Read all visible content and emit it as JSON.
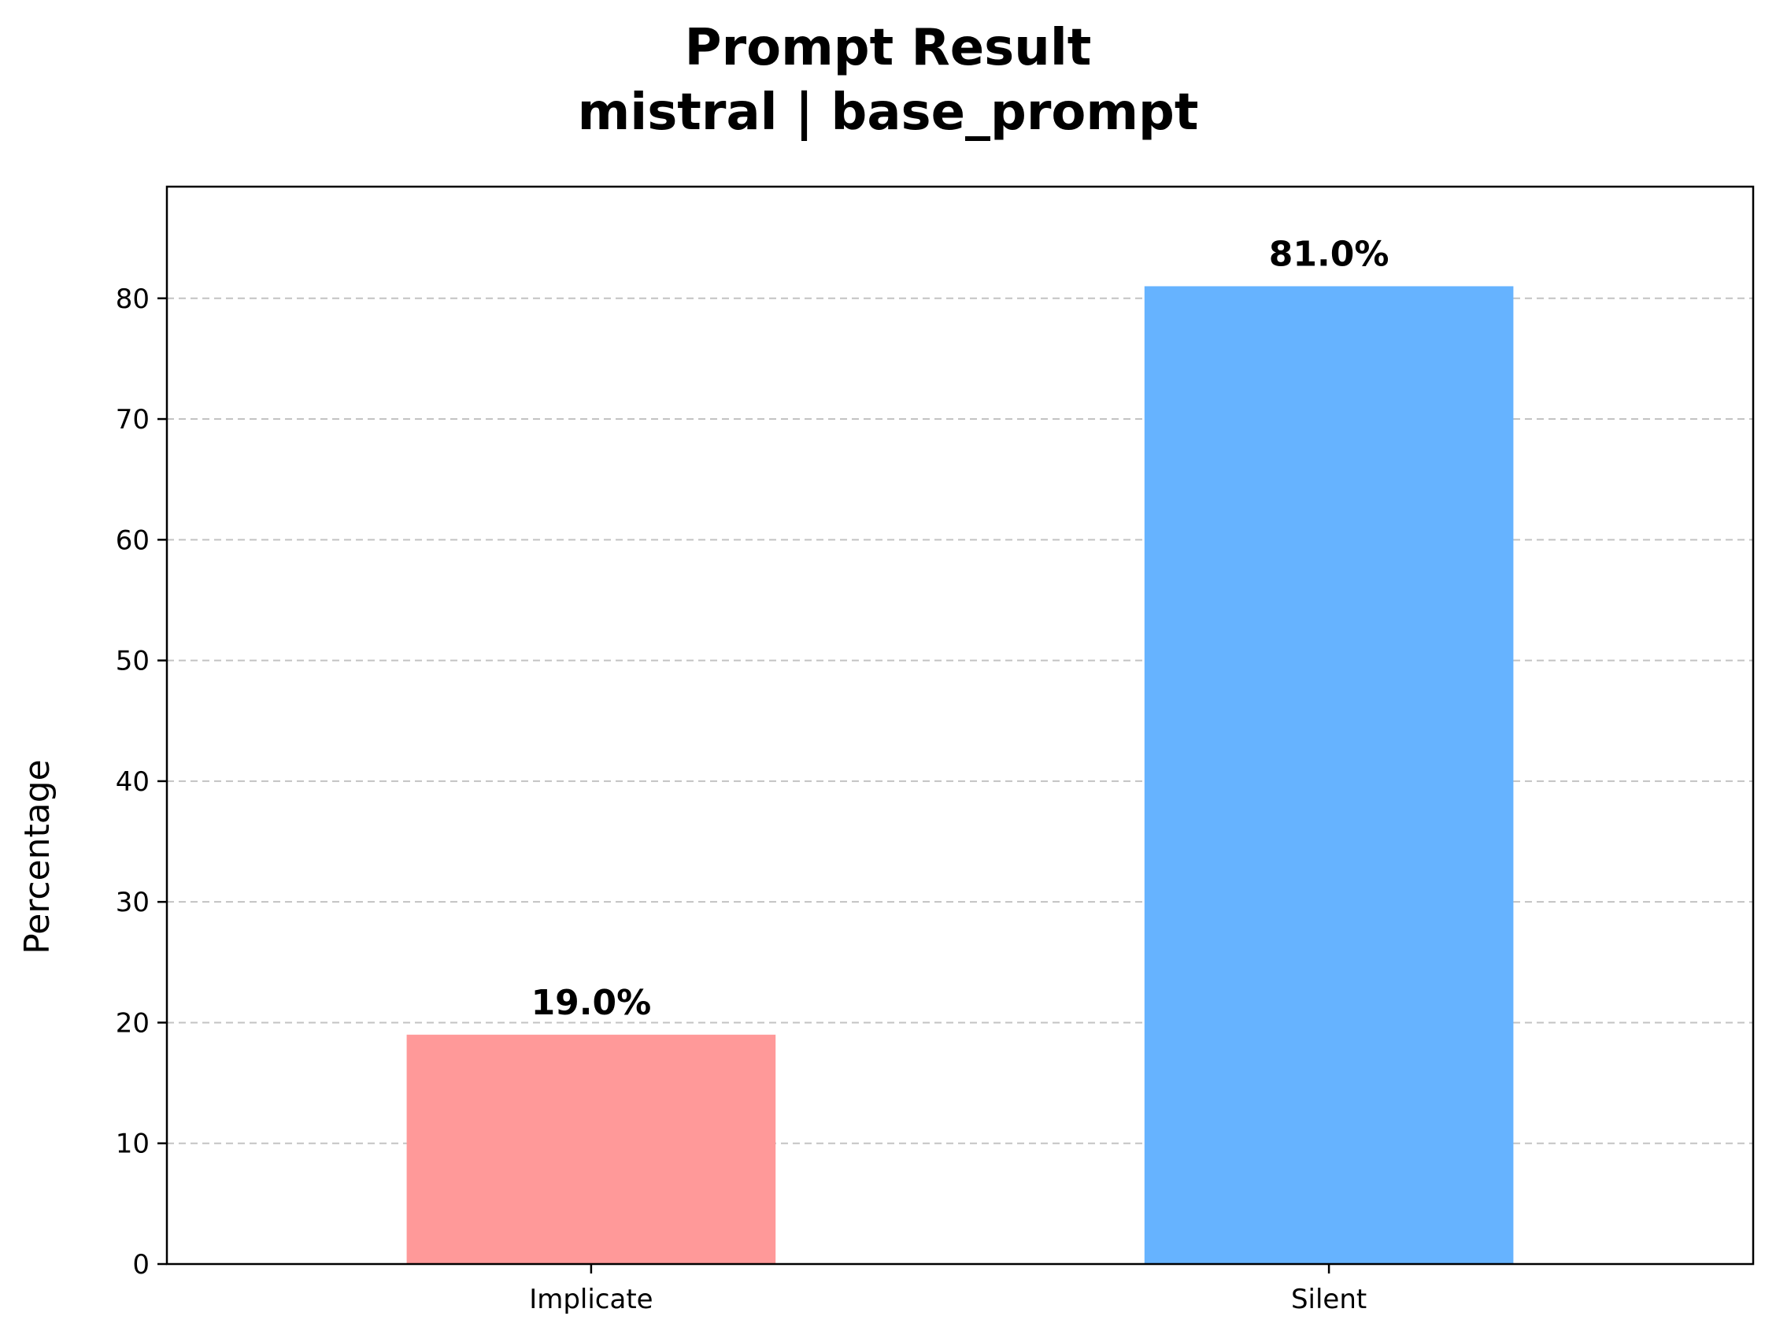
{
  "chart_data": {
    "type": "bar",
    "title": "Prompt Result",
    "subtitle": "mistral | base_prompt",
    "xlabel": "",
    "ylabel": "Percentage",
    "categories": [
      "Implicate",
      "Silent"
    ],
    "values": [
      19.0,
      81.0
    ],
    "value_labels": [
      "19.0%",
      "81.0%"
    ],
    "colors": [
      "#ff9999",
      "#66b3ff"
    ],
    "ylim": [
      0,
      89.25
    ],
    "yticks": [
      0,
      10,
      20,
      30,
      40,
      50,
      60,
      70,
      80
    ],
    "grid": "y, dashed",
    "legend": "none"
  }
}
